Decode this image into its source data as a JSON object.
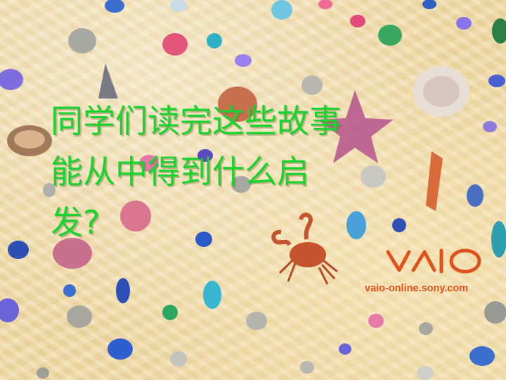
{
  "slide": {
    "title_lines": [
      "同学们读完这些故事",
      "能从中得到什么启",
      "发?"
    ],
    "brand": {
      "logo_text": "VAIO",
      "url": "vaio-online.sony.com",
      "color": "#e0521c"
    },
    "colors": {
      "title": "#19d32e",
      "background": "#efd9a6"
    },
    "decorations": [
      "beach-sand",
      "pebbles",
      "seashells",
      "starfish",
      "crab"
    ]
  }
}
